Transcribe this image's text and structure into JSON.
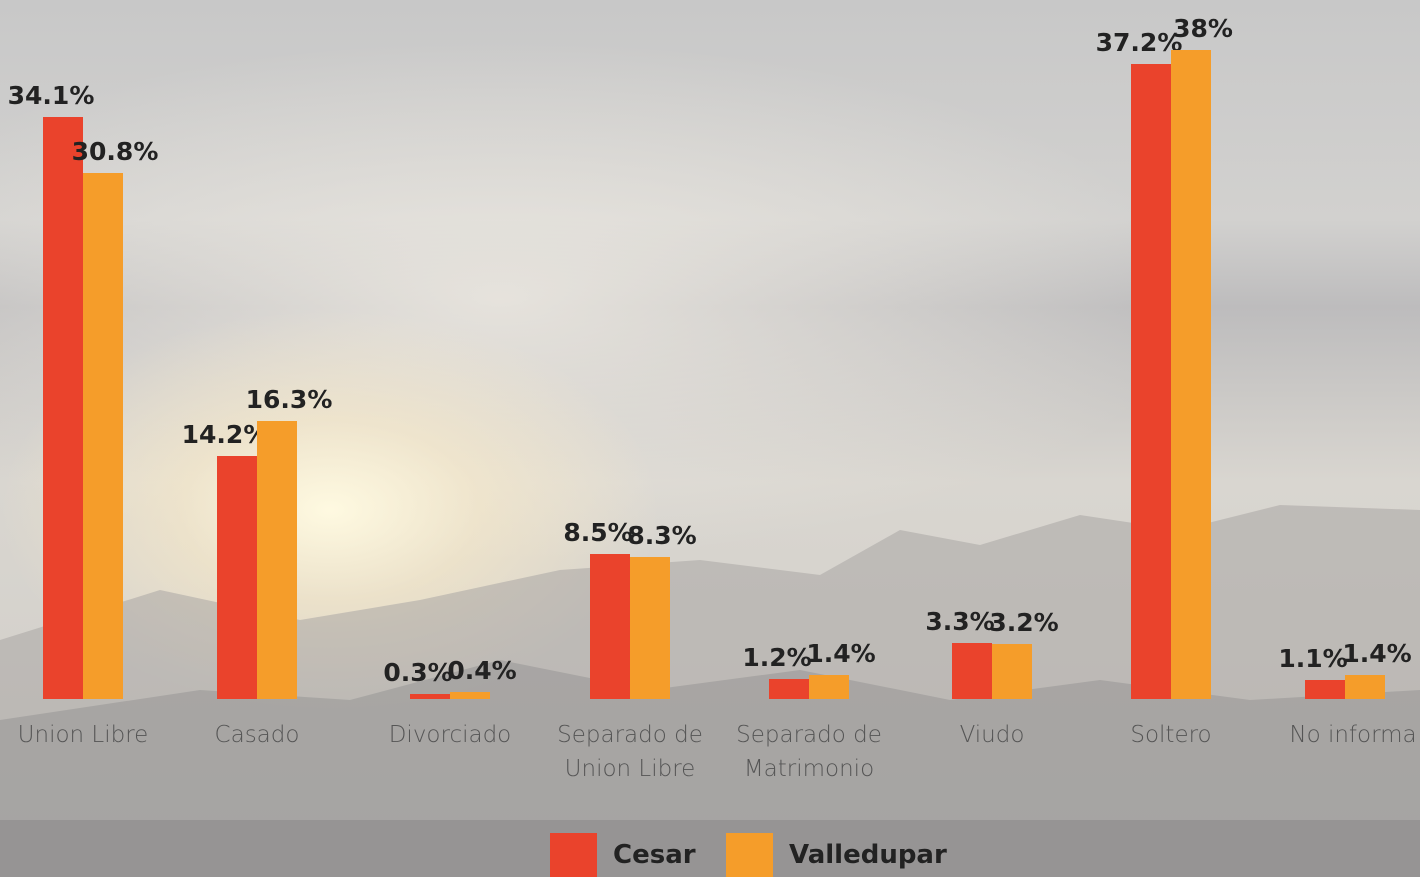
{
  "chart_data": {
    "type": "bar",
    "categories": [
      "Union Libre",
      "Casado",
      "Divorciado",
      "Separado de Union Libre",
      "Separado de Matrimonio",
      "Viudo",
      "Soltero",
      "No informa"
    ],
    "series": [
      {
        "name": "Cesar",
        "color": "#ea432c",
        "values": [
          34.1,
          14.2,
          0.3,
          8.5,
          1.2,
          3.3,
          37.2,
          1.1
        ],
        "value_labels": [
          "34.1%",
          "14.2%",
          "0.3%",
          "8.5%",
          "1.2%",
          "3.3%",
          "37.2%",
          "1.1%"
        ]
      },
      {
        "name": "Valledupar",
        "color": "#f59d2a",
        "values": [
          30.8,
          16.3,
          0.4,
          8.3,
          1.4,
          3.2,
          38,
          1.4
        ],
        "value_labels": [
          "30.8%",
          "16.3%",
          "0.4%",
          "8.3%",
          "1.4%",
          "3.2%",
          "38%",
          "1.4%"
        ]
      }
    ]
  }
}
